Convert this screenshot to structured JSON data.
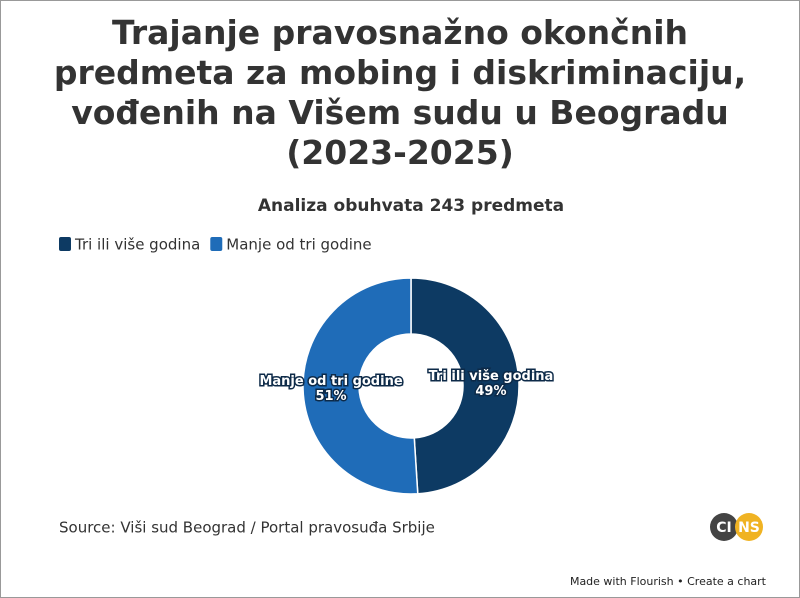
{
  "chart_data": {
    "type": "pie",
    "donut": true,
    "title": "Trajanje pravosnažno okončnih predmeta za mobing i diskriminaciju, vođenih na Višem sudu u Beogradu (2023-2025)",
    "subtitle": "Analiza obuhvata 243 predmeta",
    "categories": [
      "Tri ili više godina",
      "Manje od tri godine"
    ],
    "values": [
      49,
      51
    ],
    "value_labels": [
      "49%",
      "51%"
    ],
    "colors": [
      "#0d3a63",
      "#1f6cb8"
    ],
    "legend": "top-left",
    "source": "Source: Viši sud Beograd / Portal pravosuđa Srbije",
    "logo": [
      "CI",
      "NS"
    ],
    "footer": "Made with Flourish • Create a chart"
  }
}
